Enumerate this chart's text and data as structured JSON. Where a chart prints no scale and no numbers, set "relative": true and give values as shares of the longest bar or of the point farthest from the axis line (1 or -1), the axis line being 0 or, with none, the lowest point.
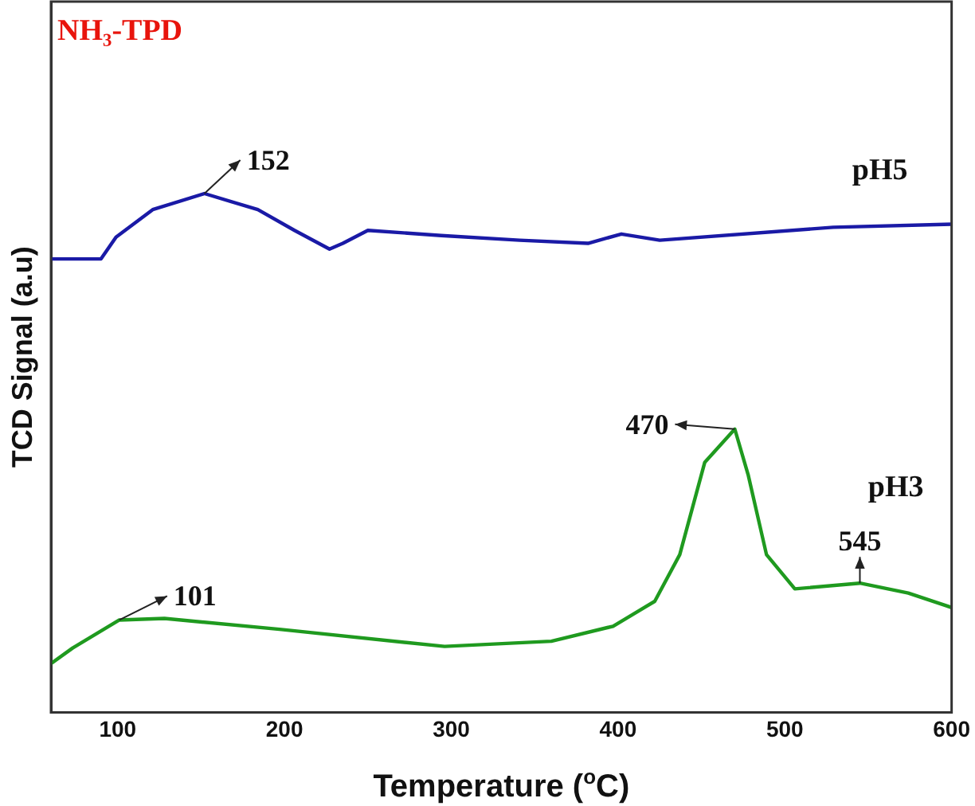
{
  "chart_data": {
    "type": "line",
    "title": "NH₃-TPD",
    "xlabel": "Temperature ($^{o}$C)",
    "ylabel": "TCD Signal (a.u)",
    "relative": true,
    "xlim": [
      60,
      600
    ],
    "xticks": [
      100,
      200,
      300,
      400,
      500,
      600
    ],
    "grid": false,
    "legend": false,
    "marker": "none",
    "line_style": "solid",
    "series": [
      {
        "name": "pH5",
        "color": "#1a1aa6",
        "x": [
          60,
          90,
          99,
          121,
          152,
          184,
          206,
          227,
          235,
          250,
          294,
          341,
          382,
          402,
          425,
          529,
          600
        ],
        "values": [
          0.874,
          0.874,
          0.916,
          0.969,
          1.0,
          0.969,
          0.929,
          0.893,
          0.904,
          0.929,
          0.919,
          0.91,
          0.904,
          0.922,
          0.91,
          0.935,
          0.941
        ]
      },
      {
        "name": "pH3",
        "color": "#1f9a1f",
        "x": [
          60,
          73,
          101,
          128,
          197,
          296,
          360,
          397,
          422,
          437,
          452,
          470,
          478,
          489,
          506,
          545,
          574,
          600
        ],
        "values": [
          0.094,
          0.124,
          0.178,
          0.181,
          0.16,
          0.127,
          0.137,
          0.166,
          0.214,
          0.304,
          0.482,
          0.546,
          0.458,
          0.304,
          0.238,
          0.249,
          0.23,
          0.202
        ]
      }
    ],
    "annotations": [
      {
        "text": "152",
        "x": 152,
        "y": 1.0
      },
      {
        "text": "101",
        "x": 101,
        "y": 0.178
      },
      {
        "text": "470",
        "x": 470,
        "y": 0.546
      },
      {
        "text": "545",
        "x": 545,
        "y": 0.249
      }
    ]
  }
}
